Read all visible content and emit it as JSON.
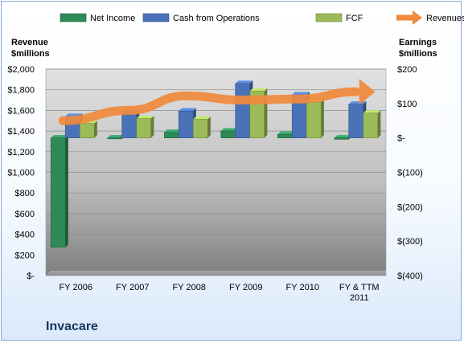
{
  "chart_data": {
    "type": "bar",
    "title": "Invacare",
    "categories": [
      "FY 2006",
      "FY 2007",
      "FY 2008",
      "FY 2009",
      "FY 2010",
      "FY & TTM 2011"
    ],
    "category_lines": [
      [
        "FY 2006"
      ],
      [
        "FY 2007"
      ],
      [
        "FY 2008"
      ],
      [
        "FY 2009"
      ],
      [
        "FY 2010"
      ],
      [
        "FY & TTM",
        "2011"
      ]
    ],
    "left_axis": {
      "title_lines": [
        "Revenue",
        "$millions"
      ],
      "ylim": [
        0,
        2000
      ],
      "ticks": [
        0,
        200,
        400,
        600,
        800,
        1000,
        1200,
        1400,
        1600,
        1800,
        2000
      ],
      "tick_labels": [
        "$-",
        "$200",
        "$400",
        "$600",
        "$800",
        "$1,000",
        "$1,200",
        "$1,400",
        "$1,600",
        "$1,800",
        "$2,000"
      ]
    },
    "right_axis": {
      "title_lines": [
        "Earnings",
        "$millions"
      ],
      "ylim": [
        -400,
        200
      ],
      "ticks": [
        -400,
        -300,
        -200,
        -100,
        0,
        100,
        200
      ],
      "tick_labels": [
        "$(400)",
        "$(300)",
        "$(200)",
        "$(100)",
        "$-",
        "$100",
        "$200"
      ]
    },
    "series": [
      {
        "name": "Net Income",
        "type": "bar",
        "axis": "right",
        "color": "#2e8b57",
        "values": [
          -318,
          -2,
          16,
          20,
          10,
          -4
        ]
      },
      {
        "name": "Cash from Operations",
        "type": "bar",
        "axis": "right",
        "color": "#4a72b8",
        "values": [
          62,
          72,
          78,
          158,
          125,
          98
        ]
      },
      {
        "name": "FCF",
        "type": "bar",
        "axis": "right",
        "color": "#9bbb59",
        "values": [
          42,
          56,
          54,
          136,
          104,
          72
        ]
      },
      {
        "name": "Revenues",
        "type": "line",
        "axis": "left",
        "color": "#f08a3c",
        "values": [
          1500,
          1600,
          1740,
          1700,
          1710,
          1780
        ]
      }
    ],
    "grid": true,
    "legend": "top"
  }
}
